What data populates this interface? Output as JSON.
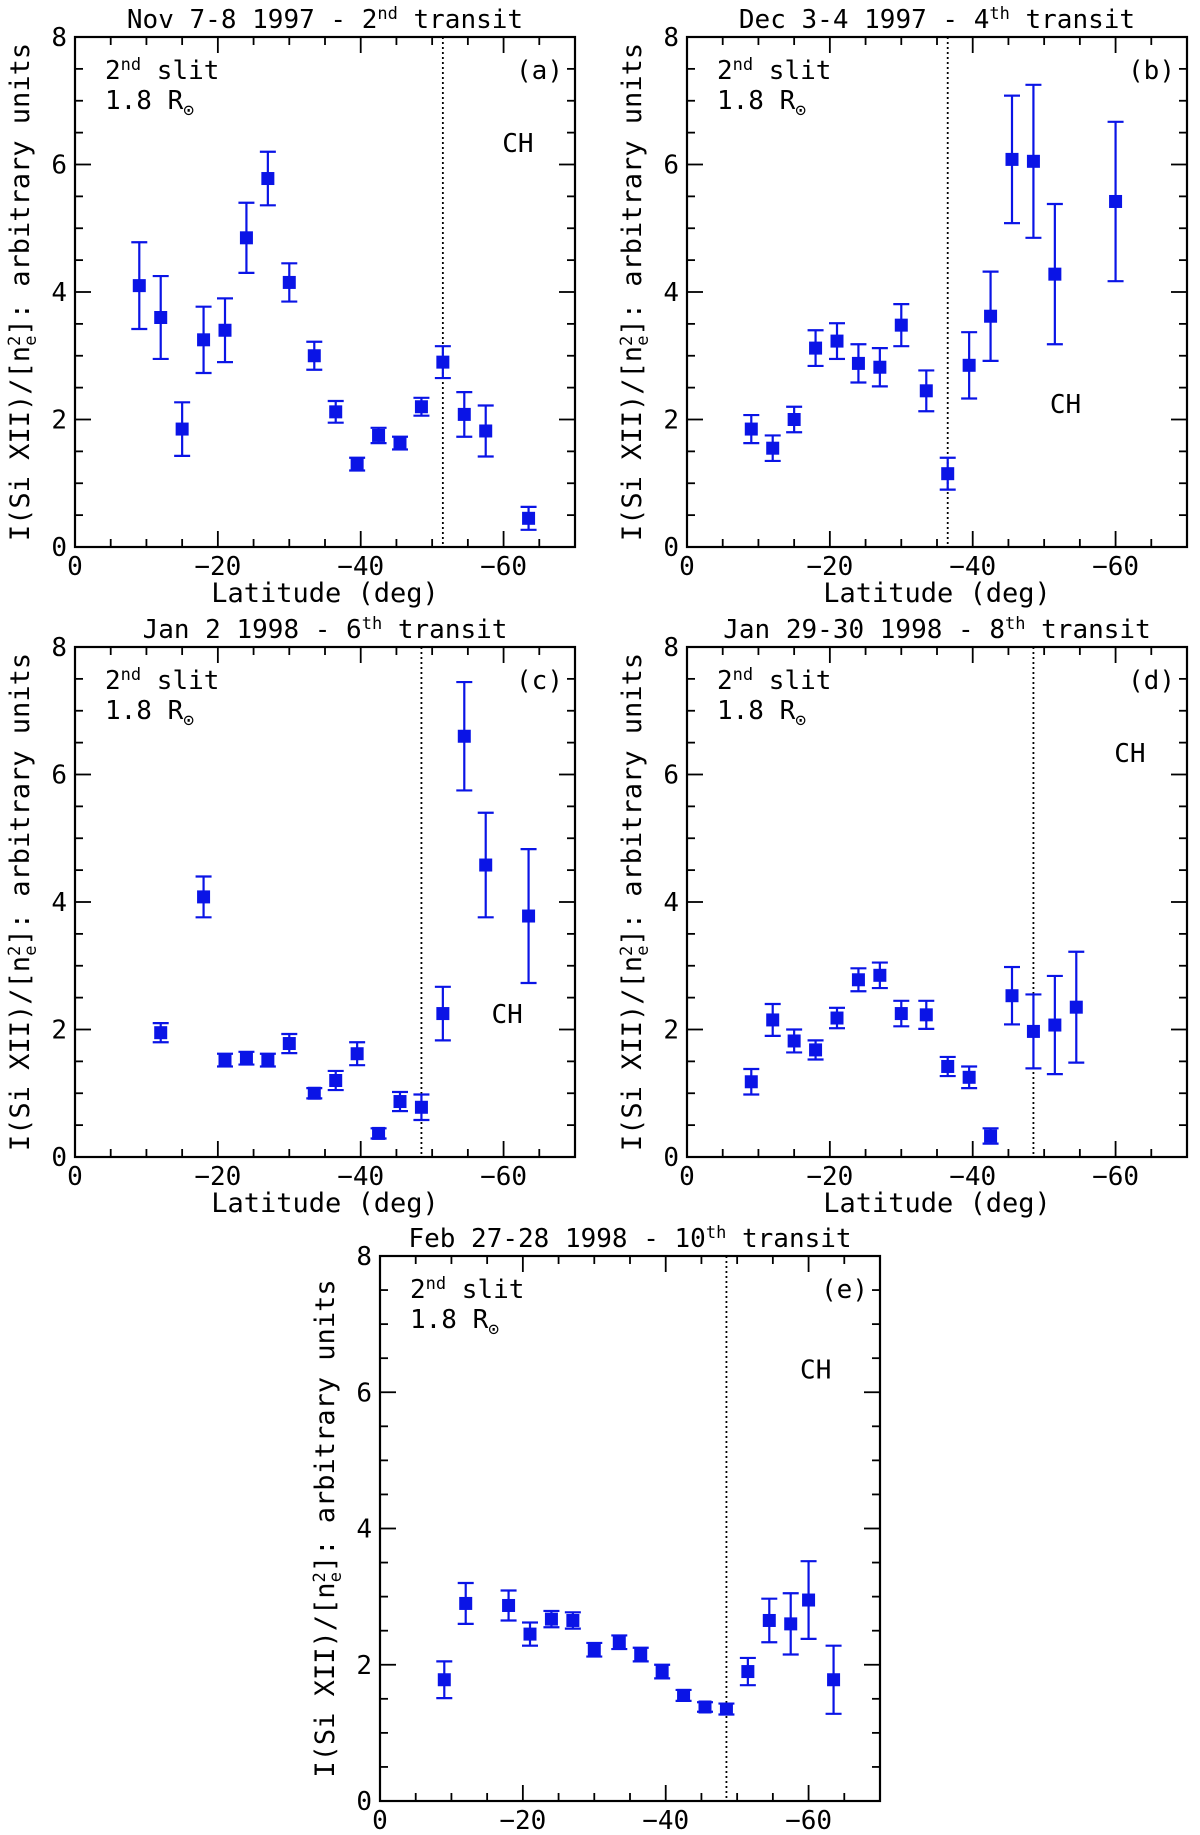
{
  "figure": {
    "ylabel": "I(Si XII)/[n²e]: arbitrary units",
    "ylabel_pre": "I(Si XII)/[n",
    "ylabel_sup": "2",
    "ylabel_sub": "e",
    "ylabel_post": "]: arbitrary units",
    "xlabel": "Latitude (deg)",
    "slit_ordinal": "2",
    "slit_sup": "nd",
    "slit_word": "slit",
    "radius": "1.8 R",
    "sun_symbol": "⊙",
    "region_label": "CH",
    "colors": {
      "points": "#0a14e6",
      "axes": "#000000"
    }
  },
  "chart_data": [
    {
      "type": "scatter",
      "panel": "(a)",
      "title_main": "Nov 7-8 1997 - 2",
      "title_sup": "nd",
      "title_end": "transit",
      "xlim": [
        0,
        -70
      ],
      "ylim": [
        0,
        8
      ],
      "xticks": [
        0,
        -20,
        -40,
        -60
      ],
      "yticks": [
        0,
        2,
        4,
        6,
        8
      ],
      "divider_lat": -51.5,
      "ch_label_lat": -62,
      "ch_label_y": 6.2,
      "x": [
        -9,
        -12,
        -15,
        -18,
        -21,
        -24,
        -27,
        -30,
        -33.5,
        -36.5,
        -39.5,
        -42.5,
        -45.5,
        -48.5,
        -51.5,
        -54.5,
        -57.5,
        -63.5
      ],
      "y": [
        4.1,
        3.6,
        1.85,
        3.25,
        3.4,
        4.85,
        5.78,
        4.15,
        3.0,
        2.12,
        1.3,
        1.75,
        1.63,
        2.2,
        2.9,
        2.08,
        1.82,
        0.45
      ],
      "err": [
        0.68,
        0.65,
        0.42,
        0.52,
        0.5,
        0.55,
        0.42,
        0.3,
        0.22,
        0.17,
        0.1,
        0.12,
        0.1,
        0.14,
        0.25,
        0.35,
        0.4,
        0.18
      ]
    },
    {
      "type": "scatter",
      "panel": "(b)",
      "title_main": "Dec 3-4 1997 - 4",
      "title_sup": "th",
      "title_end": "transit",
      "xlim": [
        0,
        -70
      ],
      "ylim": [
        0,
        8
      ],
      "xticks": [
        0,
        -20,
        -40,
        -60
      ],
      "yticks": [
        0,
        2,
        4,
        6,
        8
      ],
      "divider_lat": -36.5,
      "ch_label_lat": -53,
      "ch_label_y": 2.1,
      "x": [
        -9,
        -12,
        -15,
        -18,
        -21,
        -24,
        -27,
        -30,
        -33.5,
        -36.5,
        -39.5,
        -42.5,
        -45.5,
        -48.5,
        -51.5,
        -60
      ],
      "y": [
        1.85,
        1.55,
        2.0,
        3.12,
        3.23,
        2.88,
        2.82,
        3.48,
        2.45,
        1.15,
        2.85,
        3.62,
        6.08,
        6.05,
        4.28,
        5.42
      ],
      "err": [
        0.22,
        0.2,
        0.2,
        0.28,
        0.28,
        0.3,
        0.3,
        0.33,
        0.32,
        0.25,
        0.52,
        0.7,
        1.0,
        1.2,
        1.1,
        1.25
      ]
    },
    {
      "type": "scatter",
      "panel": "(c)",
      "title_main": "Jan 2 1998 - 6",
      "title_sup": "th",
      "title_end": "transit",
      "xlim": [
        0,
        -70
      ],
      "ylim": [
        0,
        8
      ],
      "xticks": [
        0,
        -20,
        -40,
        -60
      ],
      "yticks": [
        0,
        2,
        4,
        6,
        8
      ],
      "divider_lat": -48.5,
      "ch_label_lat": -60.5,
      "ch_label_y": 2.1,
      "x": [
        -12,
        -18,
        -21,
        -24,
        -27,
        -30,
        -33.5,
        -36.5,
        -39.5,
        -42.5,
        -45.5,
        -48.5,
        -51.5,
        -54.5,
        -57.5,
        -63.5
      ],
      "y": [
        1.95,
        4.08,
        1.52,
        1.55,
        1.52,
        1.78,
        1.0,
        1.2,
        1.62,
        0.37,
        0.87,
        0.78,
        2.25,
        6.6,
        4.58,
        3.78
      ],
      "err": [
        0.15,
        0.32,
        0.1,
        0.1,
        0.1,
        0.15,
        0.08,
        0.15,
        0.18,
        0.08,
        0.15,
        0.2,
        0.42,
        0.85,
        0.82,
        1.05
      ]
    },
    {
      "type": "scatter",
      "panel": "(d)",
      "title_main": "Jan 29-30 1998 - 8",
      "title_sup": "th",
      "title_end": "transit",
      "xlim": [
        0,
        -70
      ],
      "ylim": [
        0,
        8
      ],
      "xticks": [
        0,
        -20,
        -40,
        -60
      ],
      "yticks": [
        0,
        2,
        4,
        6,
        8
      ],
      "divider_lat": -48.5,
      "ch_label_lat": -62,
      "ch_label_y": 6.2,
      "x": [
        -9,
        -12,
        -15,
        -18,
        -21,
        -24,
        -27,
        -30,
        -33.5,
        -36.5,
        -39.5,
        -42.5,
        -45.5,
        -48.5,
        -51.5,
        -54.5
      ],
      "y": [
        1.18,
        2.15,
        1.82,
        1.68,
        2.18,
        2.78,
        2.85,
        2.25,
        2.23,
        1.42,
        1.25,
        0.33,
        2.53,
        1.97,
        2.07,
        2.35
      ],
      "err": [
        0.2,
        0.25,
        0.18,
        0.15,
        0.16,
        0.18,
        0.2,
        0.2,
        0.22,
        0.15,
        0.17,
        0.12,
        0.45,
        0.58,
        0.77,
        0.87
      ]
    },
    {
      "type": "scatter",
      "panel": "(e)",
      "title_main": "Feb 27-28 1998 - 10",
      "title_sup": "th",
      "title_end": "transit",
      "xlim": [
        0,
        -70
      ],
      "ylim": [
        0,
        8
      ],
      "xticks": [
        0,
        -20,
        -40,
        -60
      ],
      "yticks": [
        0,
        2,
        4,
        6,
        8
      ],
      "divider_lat": -48.5,
      "ch_label_lat": -61,
      "ch_label_y": 6.2,
      "x": [
        -9,
        -12,
        -18,
        -21,
        -24,
        -27,
        -30,
        -33.5,
        -36.5,
        -39.5,
        -42.5,
        -45.5,
        -48.5,
        -51.5,
        -54.5,
        -57.5,
        -60,
        -63.5
      ],
      "y": [
        1.78,
        2.9,
        2.87,
        2.45,
        2.67,
        2.65,
        2.22,
        2.33,
        2.15,
        1.9,
        1.55,
        1.38,
        1.35,
        1.9,
        2.65,
        2.6,
        2.95,
        1.78
      ],
      "err": [
        0.27,
        0.3,
        0.22,
        0.17,
        0.12,
        0.12,
        0.1,
        0.1,
        0.1,
        0.1,
        0.08,
        0.07,
        0.08,
        0.2,
        0.32,
        0.45,
        0.57,
        0.5
      ]
    }
  ]
}
